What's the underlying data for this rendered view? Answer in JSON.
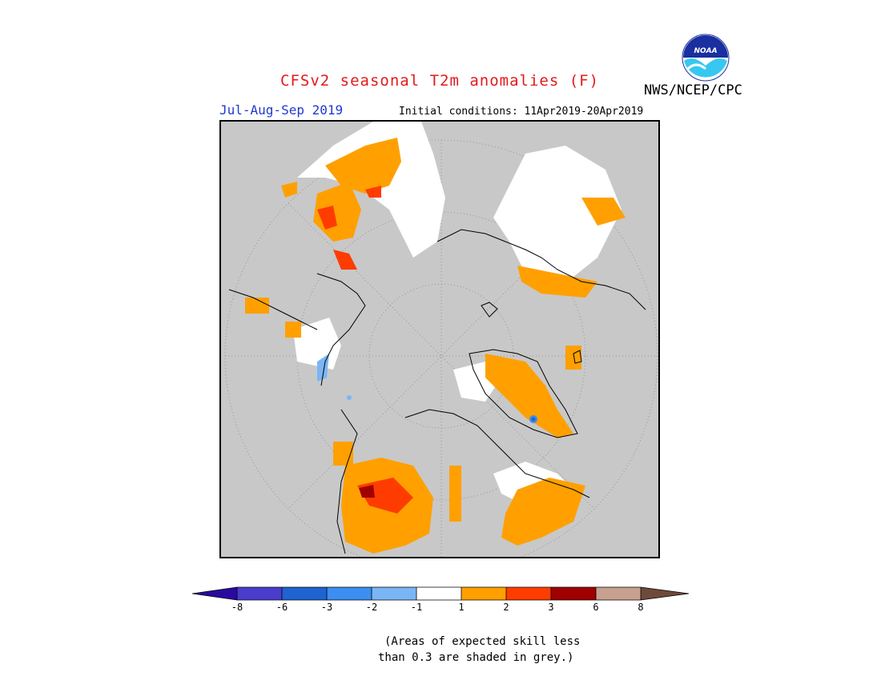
{
  "header": {
    "title": "CFSv2 seasonal T2m anomalies (F)",
    "period": "Jul-Aug-Sep 2019",
    "initial_conditions": "Initial conditions: 11Apr2019-20Apr2019",
    "agency": "NWS/NCEP/CPC",
    "logo_text": "NOAA"
  },
  "colors": {
    "title": "#e31a1c",
    "period": "#1f3ad0",
    "grey_mask": "#c8c8c8"
  },
  "colorbar": {
    "bins": [
      {
        "color": "#2a0a9e"
      },
      {
        "color": "#4a3ccc"
      },
      {
        "color": "#1f63d0"
      },
      {
        "color": "#3c8ef0"
      },
      {
        "color": "#7ab6f5"
      },
      {
        "color": "#ffffff"
      },
      {
        "color": "#ffa000"
      },
      {
        "color": "#ff3c00"
      },
      {
        "color": "#a00000"
      },
      {
        "color": "#c8a090"
      },
      {
        "color": "#6e4a3a"
      }
    ],
    "tick_labels": [
      "-8",
      "-6",
      "-3",
      "-2",
      "-1",
      "1",
      "2",
      "3",
      "6",
      "8"
    ]
  },
  "footnote": {
    "line1": "(Areas of expected skill less",
    "line2": "than 0.3 are shaded in grey.)"
  }
}
